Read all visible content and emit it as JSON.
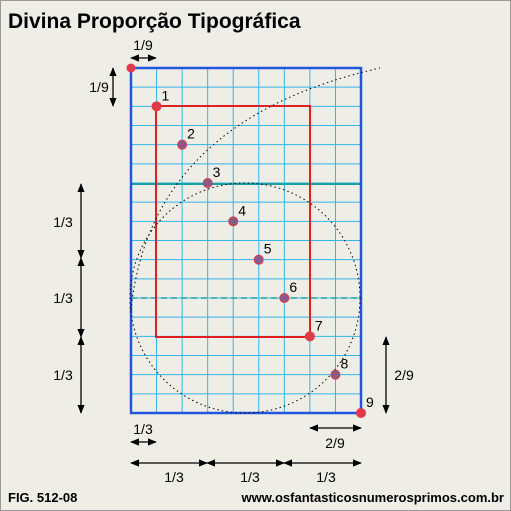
{
  "header": {
    "title": "Divina Proporção Tipográfica"
  },
  "labels": {
    "top_ninth": "1/9",
    "left_ninth": "1/9",
    "left_thirds": [
      "1/3",
      "1/3",
      "1/3"
    ],
    "right_two_ninths": "2/9",
    "bottom_left": "1/3",
    "bottom_two_ninths": "2/9",
    "bottom_thirds": [
      "1/3",
      "1/3",
      "1/3"
    ]
  },
  "points": [
    "1",
    "2",
    "3",
    "4",
    "5",
    "6",
    "7",
    "8",
    "9"
  ],
  "footer": {
    "figure": "FIG. 512-08",
    "url": "www.osfantasticosnumerosprimos.com.br"
  }
}
